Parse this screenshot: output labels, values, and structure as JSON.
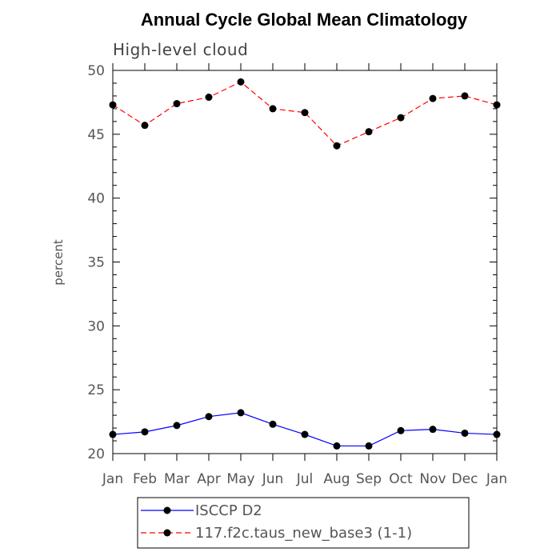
{
  "chart_data": {
    "type": "line",
    "title": "Annual Cycle Global Mean Climatology",
    "subtitle": "High-level cloud",
    "xlabel": "",
    "ylabel": "percent",
    "categories": [
      "Jan",
      "Feb",
      "Mar",
      "Apr",
      "May",
      "Jun",
      "Jul",
      "Aug",
      "Sep",
      "Oct",
      "Nov",
      "Dec",
      "Jan"
    ],
    "ylim": [
      20,
      50
    ],
    "yticks": [
      20,
      25,
      30,
      35,
      40,
      45,
      50
    ],
    "series": [
      {
        "name": "ISCCP D2",
        "color": "#0000ff",
        "line_style": "solid",
        "marker": "filled-circle",
        "values": [
          21.5,
          21.7,
          22.2,
          22.9,
          23.2,
          22.3,
          21.5,
          20.6,
          20.6,
          21.8,
          21.9,
          21.6,
          21.5
        ]
      },
      {
        "name": "117.f2c.taus_new_base3 (1-1)",
        "color": "#ff0000",
        "line_style": "dashed",
        "marker": "filled-circle",
        "values": [
          47.3,
          45.7,
          47.4,
          47.9,
          49.1,
          47.0,
          46.7,
          44.1,
          45.2,
          46.3,
          47.8,
          48.0,
          47.3
        ]
      }
    ],
    "legend_position": "bottom-center",
    "grid": false
  }
}
